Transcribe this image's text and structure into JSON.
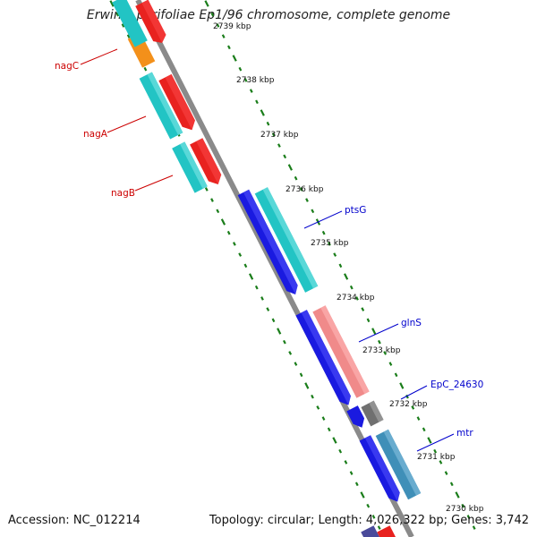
{
  "title": "Erwinia pyrifoliae Ep1/96 chromosome, complete genome",
  "footer": {
    "accession": "Accession: NC_012214",
    "topology": "Topology: circular; Length: 4,026,322 bp; Genes: 3,742"
  },
  "colors": {
    "backbone": "#8a8a8a",
    "tick": "#1a7d1a",
    "forward_cds": "#e8221f",
    "reverse_cds": "#1a1ae0",
    "cyan_feature": "#22c4c4",
    "pink_feature": "#f08a8a",
    "gray_feature": "#707070",
    "steel_feature": "#3f8fb8",
    "orange_feature": "#f3901a",
    "left_label": "#cc0000",
    "right_label": "#0000cc"
  },
  "kbp_labels": [
    "2739 kbp",
    "2738 kbp",
    "2737 kbp",
    "2736 kbp",
    "2735 kbp",
    "2734 kbp",
    "2733 kbp",
    "2732 kbp",
    "2731 kbp",
    "2730 kbp"
  ],
  "genes_left": [
    "nagC",
    "nagA",
    "nagB"
  ],
  "genes_right": [
    "ptsG",
    "glnS",
    "EpC_24630",
    "mtr"
  ]
}
